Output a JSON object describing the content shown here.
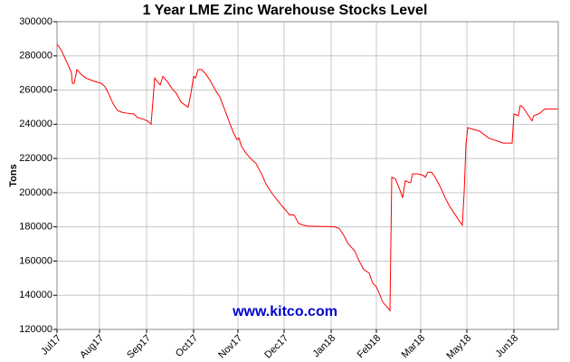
{
  "chart_data": {
    "type": "line",
    "title": "1 Year LME Zinc Warehouse Stocks Level",
    "y_label": "Tons",
    "watermark": "www.kitco.com",
    "xlim": [
      0,
      554
    ],
    "xticks": [
      {
        "value": 0,
        "label": "Jul17"
      },
      {
        "value": 47,
        "label": "Aug17"
      },
      {
        "value": 99,
        "label": "Sep17"
      },
      {
        "value": 151,
        "label": "Oct17"
      },
      {
        "value": 200,
        "label": "Nov17"
      },
      {
        "value": 251,
        "label": "Dec17"
      },
      {
        "value": 303,
        "label": "Jan18"
      },
      {
        "value": 353,
        "label": "Feb18"
      },
      {
        "value": 402,
        "label": "Mar18"
      },
      {
        "value": 453,
        "label": "May18"
      },
      {
        "value": 505,
        "label": "Jun18"
      }
    ],
    "ylim": [
      120000,
      300000
    ],
    "yticks": [
      120000,
      140000,
      160000,
      180000,
      200000,
      220000,
      240000,
      260000,
      280000,
      300000
    ],
    "grid": true,
    "x": [
      0,
      5,
      12,
      16,
      17,
      19,
      22,
      27,
      32,
      37,
      42,
      49,
      53,
      57,
      62,
      67,
      72,
      77,
      85,
      89,
      95,
      100,
      104,
      108,
      114,
      117,
      122,
      127,
      132,
      137,
      142,
      145,
      148,
      151,
      153,
      156,
      160,
      165,
      170,
      175,
      180,
      185,
      190,
      195,
      199,
      201,
      204,
      209,
      214,
      220,
      226,
      231,
      237,
      243,
      249,
      254,
      257,
      262,
      267,
      272,
      277,
      287,
      297,
      307,
      312,
      317,
      322,
      329,
      334,
      339,
      345,
      349,
      353,
      357,
      360,
      365,
      368,
      370,
      374,
      378,
      382,
      385,
      389,
      391,
      393,
      399,
      405,
      407,
      410,
      414,
      418,
      424,
      429,
      434,
      439,
      444,
      448,
      450,
      452,
      454,
      460,
      467,
      472,
      477,
      482,
      488,
      493,
      503,
      505,
      510,
      512,
      515,
      520,
      525,
      527,
      532,
      535,
      539,
      554
    ],
    "series": [
      {
        "name": "Tons",
        "color": "#ff0000",
        "values": [
          287000,
          283000,
          275000,
          270000,
          264000,
          264000,
          272000,
          269000,
          267000,
          266000,
          265000,
          264000,
          262000,
          258000,
          252000,
          248000,
          247000,
          246500,
          246000,
          244000,
          243000,
          242000,
          240000,
          267000,
          263000,
          268000,
          265000,
          261000,
          258000,
          253000,
          251000,
          250000,
          258000,
          268000,
          267000,
          272000,
          272000,
          269000,
          265000,
          260000,
          256000,
          249000,
          242000,
          235000,
          231000,
          232000,
          227000,
          223000,
          220000,
          217000,
          211000,
          205000,
          200000,
          196000,
          192000,
          189000,
          187000,
          187000,
          182000,
          181000,
          180500,
          180300,
          180200,
          180000,
          179000,
          175000,
          170000,
          166000,
          160000,
          155000,
          153000,
          147000,
          145000,
          140000,
          136000,
          133000,
          131000,
          209000,
          208000,
          203000,
          197000,
          207000,
          206000,
          206000,
          211000,
          211000,
          210000,
          209000,
          212000,
          212000,
          209000,
          203000,
          197000,
          192000,
          188000,
          184000,
          181000,
          200000,
          228000,
          238000,
          237000,
          236000,
          234000,
          232000,
          231000,
          230000,
          229000,
          229000,
          246000,
          245000,
          251000,
          250000,
          246000,
          242000,
          245000,
          246000,
          247000,
          249000,
          249000
        ]
      }
    ]
  }
}
